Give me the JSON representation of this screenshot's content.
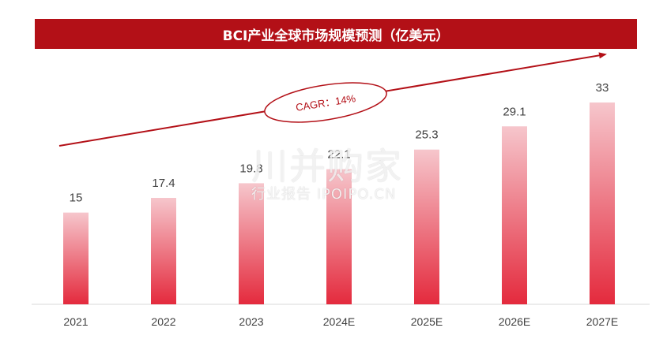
{
  "chart_data": {
    "type": "bar",
    "title": "BCI产业全球市场规模预测（亿美元）",
    "categories": [
      "2021",
      "2022",
      "2023",
      "2024E",
      "2025E",
      "2026E",
      "2027E"
    ],
    "values": [
      15,
      17.4,
      19.8,
      22.1,
      25.3,
      29.1,
      33
    ],
    "value_labels": [
      "15",
      "17.4",
      "19.8",
      "22.1",
      "25.3",
      "29.1",
      "33"
    ],
    "ylim": [
      0,
      33
    ],
    "grid": false,
    "annotation": "CAGR：14%",
    "colors": {
      "bar_top": "#f6c6cc",
      "bar_bottom": "#e42a3d",
      "title_bg": "#b31017",
      "arrow": "#b31017"
    }
  },
  "watermark": {
    "logo": "川并购家",
    "text": "行业报告 IPOIPO.CN"
  }
}
